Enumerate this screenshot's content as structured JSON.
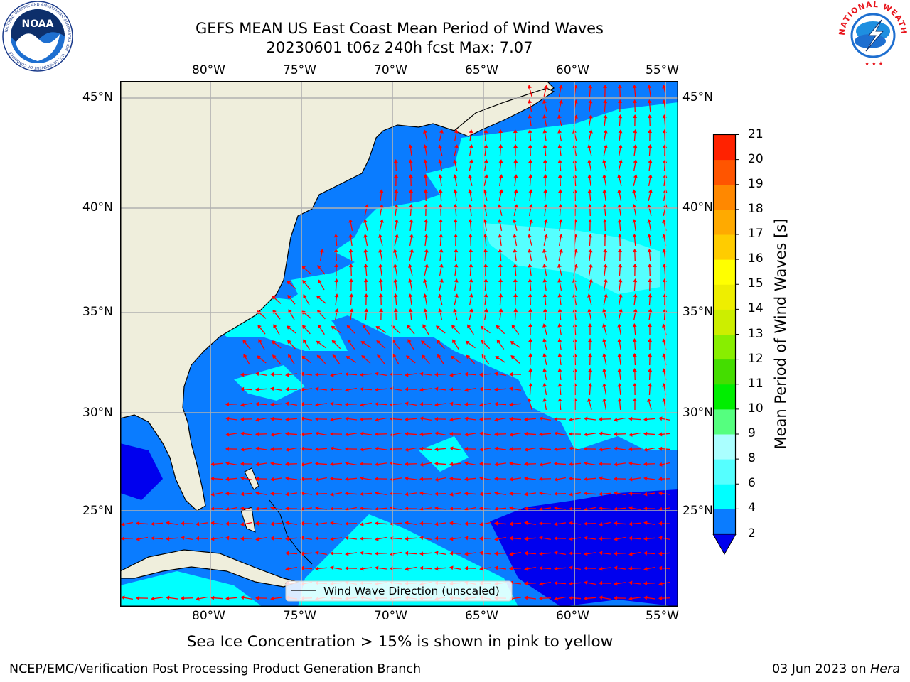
{
  "header": {
    "title_line1": "GEFS MEAN US East Coast Mean Period of Wind Waves",
    "title_line2": "20230601 t06z 240h fcst   Max: 7.07"
  },
  "logos": {
    "left": {
      "text": "NOARAA",
      "icon": "noaa-logo-icon",
      "ring_text": "NATIONAL OCEANIC AND ATMOSPHERIC ADMINISTRATION · U.S. DEPARTMENT OF COMMERCE"
    },
    "right": {
      "icon": "nws-logo-icon",
      "ring_text": "NATIONAL WEATHER SERVICE"
    }
  },
  "map": {
    "lon_labels": [
      "80°W",
      "75°W",
      "70°W",
      "65°W",
      "60°W",
      "55°W"
    ],
    "lat_labels": [
      "45°N",
      "40°N",
      "35°N",
      "30°N",
      "25°N"
    ],
    "legend": "Wind Wave Direction (unscaled)",
    "colors": {
      "land": "#efeedc",
      "ocean_2_4": "#0a7cff",
      "ocean_4_6": "#00ffff",
      "ocean_0_2": "#0000ee",
      "arrow": "#ff0000",
      "grid": "#b0b0b0"
    }
  },
  "colorbar": {
    "label": "Mean Period of Wind Waves [s]",
    "ticks": [
      "2",
      "4",
      "6",
      "8",
      "9",
      "10",
      "11",
      "12",
      "13",
      "14",
      "15",
      "16",
      "17",
      "18",
      "19",
      "20",
      "21"
    ],
    "colors": [
      "#0a7cff",
      "#00ffff",
      "#55ffff",
      "#aaffff",
      "#55ff7f",
      "#00ee00",
      "#44dd00",
      "#88ee00",
      "#ccee00",
      "#eeee00",
      "#ffff00",
      "#ffcc00",
      "#ffaa00",
      "#ff8800",
      "#ff5500",
      "#ff2200"
    ],
    "under_color": "#0000ee"
  },
  "subtitle": "Sea Ice Concentration > 15% is shown in pink to yellow",
  "footer": {
    "left": "NCEP/EMC/Verification Post Processing Product Generation Branch",
    "right_date": "03 Jun 2023 on ",
    "right_machine": "Hera"
  }
}
